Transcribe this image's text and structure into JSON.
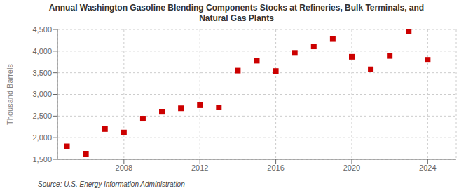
{
  "chart_data": {
    "type": "scatter",
    "title": "Annual Washington Gasoline Blending Components Stocks at Refineries, Bulk Terminals, and\nNatural Gas Plants",
    "ylabel": "Thousand Barrels",
    "source": "Source: U.S. Energy Information Administration",
    "x": [
      2005,
      2006,
      2007,
      2008,
      2009,
      2010,
      2011,
      2012,
      2013,
      2014,
      2015,
      2016,
      2017,
      2018,
      2019,
      2020,
      2021,
      2022,
      2023,
      2024
    ],
    "values": [
      1800,
      1630,
      2200,
      2120,
      2440,
      2600,
      2680,
      2750,
      2700,
      3550,
      3780,
      3540,
      3960,
      4110,
      4280,
      3870,
      3580,
      3890,
      4460,
      3800
    ],
    "color": "#cc0000",
    "marker": "square",
    "xlim": [
      2004.5,
      2025.5
    ],
    "xticks": [
      2008,
      2012,
      2016,
      2020,
      2024
    ],
    "ylim": [
      1500,
      4500
    ],
    "yticks": [
      {
        "value": 1500,
        "label": "1,500"
      },
      {
        "value": 2000,
        "label": "2,000"
      },
      {
        "value": 2500,
        "label": "2,500"
      },
      {
        "value": 3000,
        "label": "3,000"
      },
      {
        "value": 3500,
        "label": "3,500"
      },
      {
        "value": 4000,
        "label": "4,000"
      },
      {
        "value": 4500,
        "label": "4,500"
      }
    ],
    "grid": true
  }
}
